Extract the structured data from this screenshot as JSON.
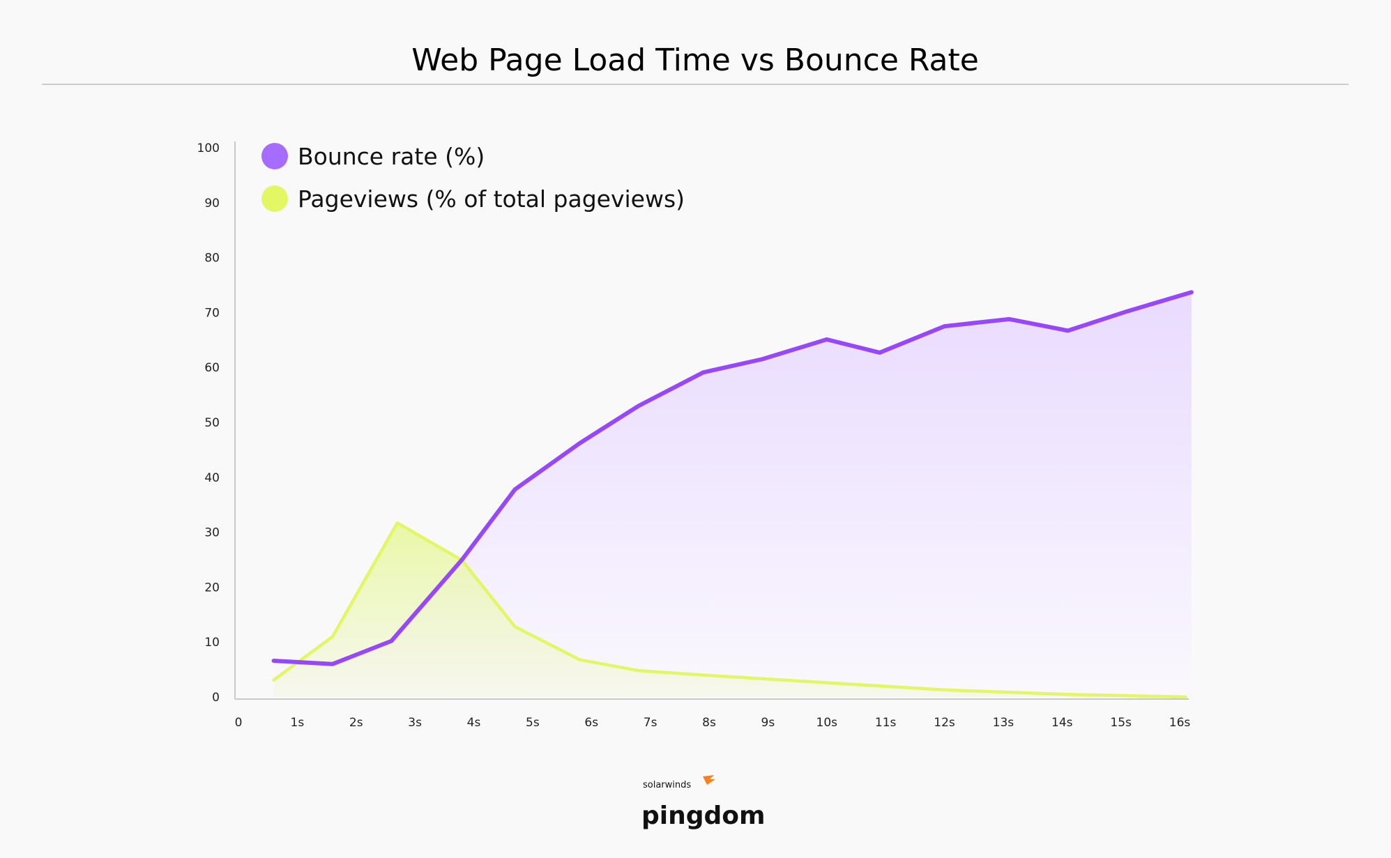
{
  "chart_data": {
    "type": "area",
    "title": "Web Page Load Time vs Bounce Rate",
    "xlabel": "",
    "ylabel": "",
    "x_tick_labels": [
      "0",
      "1s",
      "2s",
      "3s",
      "4s",
      "5s",
      "6s",
      "7s",
      "8s",
      "9s",
      "10s",
      "11s",
      "12s",
      "13s",
      "14s",
      "15s",
      "16s"
    ],
    "y_tick_labels": [
      "0",
      "10",
      "20",
      "30",
      "40",
      "50",
      "60",
      "70",
      "80",
      "90",
      "100"
    ],
    "xlim": [
      0,
      16
    ],
    "ylim": [
      0,
      100
    ],
    "grid": false,
    "legend_position": "top-left",
    "series": [
      {
        "name": "Bounce rate (%)",
        "color": "#9747ff",
        "legend_color": "#a66bff",
        "points": [
          [
            0.6,
            6.6
          ],
          [
            1.6,
            6.0
          ],
          [
            2.6,
            10.2
          ],
          [
            3.8,
            25
          ],
          [
            4.7,
            37.8
          ],
          [
            5.8,
            46.2
          ],
          [
            6.8,
            53
          ],
          [
            7.9,
            59.1
          ],
          [
            8.9,
            61.5
          ],
          [
            10.0,
            65.1
          ],
          [
            10.9,
            62.7
          ],
          [
            12.0,
            67.5
          ],
          [
            13.1,
            68.8
          ],
          [
            14.1,
            66.7
          ],
          [
            15.1,
            70.2
          ],
          [
            16.2,
            73.7
          ]
        ]
      },
      {
        "name": "Pageviews (% of total pageviews)",
        "color": "#e2f763",
        "legend_color": "#e2f763",
        "points": [
          [
            0.6,
            3.1
          ],
          [
            1.6,
            11
          ],
          [
            2.7,
            31.7
          ],
          [
            3.8,
            24.9
          ],
          [
            4.7,
            12.8
          ],
          [
            5.8,
            6.8
          ],
          [
            6.8,
            4.8
          ],
          [
            7.9,
            4.0
          ],
          [
            10.0,
            2.6
          ],
          [
            12.0,
            1.3
          ],
          [
            14.0,
            0.5
          ],
          [
            16.1,
            0
          ]
        ]
      }
    ]
  },
  "branding": {
    "company": "solarwinds",
    "product": "pingdom",
    "accent": "#f5821f"
  }
}
